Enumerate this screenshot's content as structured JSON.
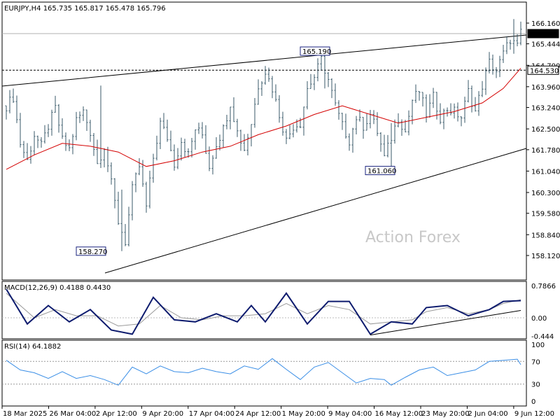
{
  "header": {
    "symbol": "EURJPY,H4",
    "ohlc": "165.735 165.817 165.478 165.796"
  },
  "watermark": "Action Forex",
  "colors": {
    "candle": "#3a5a6a",
    "ma": "#d40000",
    "macd_main": "#0d1b6e",
    "macd_signal": "#9a9a9a",
    "rsi": "#3a8ee6",
    "trend": "#000000",
    "frame": "#000000"
  },
  "chart_data": [
    {
      "type": "candlestick",
      "title": "EURJPY,H4",
      "price_ticks": [
        "166.160",
        "165.444",
        "164.700",
        "163.960",
        "163.240",
        "162.500",
        "161.780",
        "161.040",
        "160.300",
        "159.580",
        "158.840",
        "158.120"
      ],
      "price_labels": [
        {
          "text": "165.796",
          "value": 165.796,
          "style": "filled"
        },
        {
          "text": "164.530",
          "value": 164.53,
          "style": "outlined"
        }
      ],
      "annotations": [
        {
          "text": "165.190",
          "value": 165.19
        },
        {
          "text": "161.060",
          "value": 161.06
        },
        {
          "text": "158.270",
          "value": 158.27
        }
      ],
      "horizontal_lines": [
        165.796,
        164.53
      ],
      "x_tick_labels": [
        "18 Mar 2025",
        "26 Mar 04:00",
        "2 Apr 12:00",
        "9 Apr 20:00",
        "17 Apr 04:00",
        "24 Apr 12:00",
        "1 May 20:00",
        "9 May 04:00",
        "16 May 12:00",
        "23 May 20:00",
        "2 Jun 04:00",
        "9 Jun 12:00"
      ],
      "close_path": [
        [
          0,
          163.3
        ],
        [
          2,
          163.6
        ],
        [
          4,
          162.0
        ],
        [
          6,
          161.4
        ],
        [
          8,
          162.3
        ],
        [
          10,
          161.9
        ],
        [
          12,
          162.6
        ],
        [
          14,
          163.2
        ],
        [
          16,
          162.1
        ],
        [
          18,
          161.8
        ],
        [
          20,
          162.8
        ],
        [
          22,
          163.1
        ],
        [
          24,
          162.4
        ],
        [
          26,
          161.3
        ],
        [
          28,
          161.9
        ],
        [
          30,
          160.6
        ],
        [
          32,
          159.3
        ],
        [
          34,
          158.6
        ],
        [
          36,
          160.4
        ],
        [
          38,
          161.2
        ],
        [
          40,
          159.8
        ],
        [
          42,
          161.5
        ],
        [
          44,
          162.7
        ],
        [
          46,
          162.2
        ],
        [
          48,
          161.3
        ],
        [
          50,
          162.1
        ],
        [
          52,
          161.6
        ],
        [
          54,
          162.5
        ],
        [
          56,
          162.3
        ],
        [
          58,
          161.2
        ],
        [
          60,
          162.0
        ],
        [
          62,
          162.5
        ],
        [
          64,
          163.4
        ],
        [
          66,
          162.4
        ],
        [
          68,
          161.8
        ],
        [
          70,
          162.7
        ],
        [
          72,
          164.0
        ],
        [
          74,
          164.5
        ],
        [
          76,
          163.9
        ],
        [
          78,
          163.0
        ],
        [
          80,
          162.1
        ],
        [
          82,
          162.6
        ],
        [
          84,
          162.7
        ],
        [
          86,
          163.9
        ],
        [
          88,
          164.3
        ],
        [
          90,
          164.9
        ],
        [
          92,
          164.2
        ],
        [
          94,
          163.3
        ],
        [
          96,
          162.6
        ],
        [
          98,
          162.1
        ],
        [
          100,
          162.9
        ],
        [
          102,
          162.6
        ],
        [
          104,
          163.0
        ],
        [
          106,
          162.4
        ],
        [
          108,
          161.5
        ],
        [
          110,
          162.2
        ],
        [
          112,
          162.9
        ],
        [
          114,
          162.4
        ],
        [
          116,
          163.5
        ],
        [
          118,
          163.8
        ],
        [
          120,
          163.0
        ],
        [
          122,
          163.6
        ],
        [
          124,
          162.9
        ],
        [
          126,
          163.2
        ],
        [
          128,
          163.1
        ],
        [
          130,
          162.9
        ],
        [
          132,
          163.8
        ],
        [
          134,
          163.1
        ],
        [
          136,
          164.0
        ],
        [
          138,
          164.8
        ],
        [
          140,
          164.5
        ],
        [
          142,
          165.1
        ],
        [
          144,
          165.6
        ],
        [
          146,
          165.35
        ],
        [
          147,
          165.796
        ]
      ],
      "spikes": [
        {
          "x": 27,
          "high": 164.0,
          "low": 161.3
        },
        {
          "x": 33,
          "high": 160.4,
          "low": 158.27
        },
        {
          "x": 91,
          "high": 165.19,
          "low": 163.9
        },
        {
          "x": 110,
          "high": 162.7,
          "low": 161.06
        },
        {
          "x": 145,
          "high": 166.3,
          "low": 165.1
        }
      ],
      "moving_average": [
        [
          0,
          161.1
        ],
        [
          8,
          161.6
        ],
        [
          16,
          162.0
        ],
        [
          24,
          161.9
        ],
        [
          32,
          161.7
        ],
        [
          40,
          161.2
        ],
        [
          48,
          161.4
        ],
        [
          56,
          161.7
        ],
        [
          64,
          161.9
        ],
        [
          72,
          162.3
        ],
        [
          80,
          162.6
        ],
        [
          88,
          163.0
        ],
        [
          96,
          163.3
        ],
        [
          104,
          163.0
        ],
        [
          112,
          162.7
        ],
        [
          120,
          162.9
        ],
        [
          128,
          163.1
        ],
        [
          136,
          163.4
        ],
        [
          142,
          163.9
        ],
        [
          147,
          164.6
        ]
      ]
    },
    {
      "type": "line",
      "title": "MACD(12,26,9) 0.4188 0.4430",
      "y_ticks": [
        "0.7866",
        "0.00",
        "-0.444"
      ],
      "series": [
        {
          "name": "MACD",
          "points": [
            [
              0,
              0.7
            ],
            [
              6,
              -0.15
            ],
            [
              12,
              0.3
            ],
            [
              18,
              -0.1
            ],
            [
              24,
              0.2
            ],
            [
              30,
              -0.3
            ],
            [
              36,
              -0.4
            ],
            [
              42,
              0.5
            ],
            [
              48,
              -0.05
            ],
            [
              54,
              -0.1
            ],
            [
              60,
              0.1
            ],
            [
              66,
              -0.1
            ],
            [
              70,
              0.3
            ],
            [
              74,
              -0.1
            ],
            [
              80,
              0.6
            ],
            [
              86,
              -0.15
            ],
            [
              92,
              0.4
            ],
            [
              98,
              0.4
            ],
            [
              104,
              -0.4
            ],
            [
              110,
              -0.1
            ],
            [
              116,
              -0.15
            ],
            [
              120,
              0.25
            ],
            [
              126,
              0.3
            ],
            [
              132,
              0.05
            ],
            [
              138,
              0.2
            ],
            [
              142,
              0.4
            ],
            [
              147,
              0.4188
            ]
          ]
        },
        {
          "name": "Signal",
          "points": [
            [
              0,
              0.6
            ],
            [
              8,
              0.0
            ],
            [
              14,
              0.2
            ],
            [
              20,
              0.05
            ],
            [
              26,
              0.05
            ],
            [
              32,
              -0.2
            ],
            [
              38,
              -0.15
            ],
            [
              44,
              0.3
            ],
            [
              50,
              0.0
            ],
            [
              56,
              -0.05
            ],
            [
              62,
              0.05
            ],
            [
              68,
              0.05
            ],
            [
              74,
              0.1
            ],
            [
              80,
              0.35
            ],
            [
              86,
              0.1
            ],
            [
              92,
              0.3
            ],
            [
              98,
              0.2
            ],
            [
              104,
              -0.15
            ],
            [
              110,
              -0.1
            ],
            [
              116,
              -0.05
            ],
            [
              120,
              0.15
            ],
            [
              126,
              0.25
            ],
            [
              132,
              0.1
            ],
            [
              138,
              0.2
            ],
            [
              142,
              0.35
            ],
            [
              147,
              0.443
            ]
          ]
        }
      ],
      "trendline": [
        [
          104,
          -0.42
        ],
        [
          147,
          0.18
        ]
      ]
    },
    {
      "type": "line",
      "title": "RSI(14) 64.1882",
      "y_ticks": [
        "100",
        "70",
        "30",
        "0"
      ],
      "levels": [
        70,
        30
      ],
      "series": [
        {
          "name": "RSI",
          "points": [
            [
              0,
              72
            ],
            [
              4,
              55
            ],
            [
              8,
              50
            ],
            [
              12,
              40
            ],
            [
              16,
              52
            ],
            [
              20,
              40
            ],
            [
              24,
              45
            ],
            [
              28,
              38
            ],
            [
              32,
              28
            ],
            [
              36,
              60
            ],
            [
              40,
              48
            ],
            [
              44,
              62
            ],
            [
              48,
              52
            ],
            [
              52,
              50
            ],
            [
              56,
              58
            ],
            [
              60,
              52
            ],
            [
              64,
              48
            ],
            [
              68,
              62
            ],
            [
              72,
              56
            ],
            [
              76,
              75
            ],
            [
              80,
              56
            ],
            [
              84,
              38
            ],
            [
              88,
              60
            ],
            [
              92,
              68
            ],
            [
              96,
              50
            ],
            [
              100,
              32
            ],
            [
              104,
              40
            ],
            [
              108,
              38
            ],
            [
              110,
              28
            ],
            [
              114,
              42
            ],
            [
              118,
              55
            ],
            [
              122,
              60
            ],
            [
              126,
              45
            ],
            [
              130,
              50
            ],
            [
              134,
              55
            ],
            [
              138,
              70
            ],
            [
              142,
              72
            ],
            [
              146,
              74
            ],
            [
              147,
              64.19
            ]
          ]
        }
      ]
    }
  ]
}
